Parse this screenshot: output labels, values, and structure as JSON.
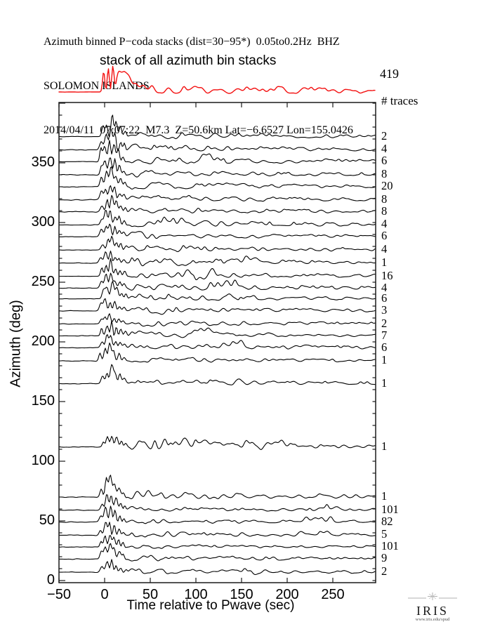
{
  "header": {
    "line1": "Azimuth binned P−coda stacks (dist=30−95*)  0.05to0.2Hz  BHZ",
    "line2": "SOLOMON ISLANDS",
    "line3": "2014/04/11  07:07:22  M7.3  Z=50.6km Lat=−6.6527 Lon=155.0426"
  },
  "stack": {
    "label": "stack of all azimuth bin stacks",
    "total": "419"
  },
  "plot": {
    "traces_header": "# traces",
    "xlabel": "Time relative to Pwave (sec)",
    "ylabel": "Azimuth (deg)"
  },
  "logo": {
    "text": "IRIS",
    "url": "www.iris.edu/spud"
  },
  "colors": {
    "stack_trace": "#f31111",
    "trace": "#000000",
    "frame": "#1a1a1a"
  },
  "chart_data": {
    "type": "line",
    "title": "Azimuth binned P-coda stacks (dist=30-95*) 0.05to0.2Hz BHZ",
    "subtitle": "SOLOMON ISLANDS 2014/04/11 07:07:22 M7.3 Z=50.6km Lat=-6.6527 Lon=155.0426",
    "xlabel": "Time relative to Pwave (sec)",
    "ylabel": "Azimuth (deg)",
    "xlim": [
      -50,
      297
    ],
    "ylim": [
      0,
      400
    ],
    "xticks": [
      -50,
      0,
      50,
      100,
      150,
      200,
      250
    ],
    "yticks": [
      0,
      50,
      100,
      150,
      200,
      250,
      300,
      350
    ],
    "y_minor_step": 10,
    "grid": false,
    "stack_trace": {
      "label": "stack of all azimuth bin stacks",
      "n_traces": 419,
      "amp": 36,
      "coda": 5.5
    },
    "traces": [
      {
        "azimuth": 372,
        "count": 2,
        "amp": 25,
        "coda": 4.5
      },
      {
        "azimuth": 361,
        "count": 4,
        "amp": 27,
        "coda": 4.5
      },
      {
        "azimuth": 351,
        "count": 6,
        "amp": 30,
        "coda": 5,
        "packets": [
          {
            "t": 120,
            "a": 7,
            "w": 25
          }
        ]
      },
      {
        "azimuth": 340,
        "count": 8,
        "amp": 24,
        "coda": 4.5
      },
      {
        "azimuth": 330,
        "count": 20,
        "amp": 23,
        "coda": 4
      },
      {
        "azimuth": 319,
        "count": 8,
        "amp": 22,
        "coda": 4
      },
      {
        "azimuth": 309,
        "count": 8,
        "amp": 21,
        "coda": 4
      },
      {
        "azimuth": 298,
        "count": 4,
        "amp": 20,
        "coda": 4.5,
        "packets": [
          {
            "t": 75,
            "a": 6,
            "w": 20
          }
        ]
      },
      {
        "azimuth": 288,
        "count": 6,
        "amp": 21,
        "coda": 4
      },
      {
        "azimuth": 277,
        "count": 4,
        "amp": 18,
        "coda": 4.5
      },
      {
        "azimuth": 266,
        "count": 1,
        "amp": 15,
        "coda": 5,
        "packets": [
          {
            "t": 150,
            "a": 6,
            "w": 30
          }
        ]
      },
      {
        "azimuth": 255,
        "count": 16,
        "amp": 20,
        "coda": 4,
        "packets": [
          {
            "t": 105,
            "a": 11,
            "w": 30
          }
        ]
      },
      {
        "azimuth": 245,
        "count": 4,
        "amp": 18,
        "coda": 4,
        "packets": [
          {
            "t": 130,
            "a": 9,
            "w": 28
          }
        ]
      },
      {
        "azimuth": 236,
        "count": 6,
        "amp": 20,
        "coda": 4,
        "packets": [
          {
            "t": 150,
            "a": 7,
            "w": 25
          }
        ]
      },
      {
        "azimuth": 226,
        "count": 3,
        "amp": 17,
        "coda": 4,
        "packets": [
          {
            "t": 70,
            "a": 6,
            "w": 15
          }
        ]
      },
      {
        "azimuth": 215,
        "count": 2,
        "amp": 15,
        "coda": 4
      },
      {
        "azimuth": 205,
        "count": 7,
        "amp": 18,
        "coda": 4,
        "packets": [
          {
            "t": 110,
            "a": 6,
            "w": 25
          }
        ]
      },
      {
        "azimuth": 195,
        "count": 6,
        "amp": 16,
        "coda": 4,
        "packets": [
          {
            "t": 140,
            "a": 7,
            "w": 20
          }
        ]
      },
      {
        "azimuth": 184,
        "count": 1,
        "amp": 20,
        "coda": 3.5
      },
      {
        "azimuth": 165,
        "count": 1,
        "amp": 23,
        "coda": 4,
        "packets": [
          {
            "t": 145,
            "a": 8,
            "w": 8
          }
        ]
      },
      {
        "azimuth": 112,
        "count": 1,
        "amp": 16,
        "coda": 5.5,
        "packets": [
          {
            "t": 65,
            "a": 9,
            "w": 20
          },
          {
            "t": 105,
            "a": 10,
            "w": 30
          },
          {
            "t": 175,
            "a": 6,
            "w": 40
          }
        ]
      },
      {
        "azimuth": 70,
        "count": 1,
        "amp": 25,
        "coda": 5,
        "packets": [
          {
            "t": 55,
            "a": 8,
            "w": 15
          }
        ]
      },
      {
        "azimuth": 59,
        "count": 101,
        "amp": 22,
        "coda": 3,
        "packets": [
          {
            "t": 240,
            "a": 5,
            "w": 30
          }
        ]
      },
      {
        "azimuth": 49,
        "count": 82,
        "amp": 20,
        "coda": 3,
        "packets": [
          {
            "t": 235,
            "a": 6,
            "w": 25
          }
        ]
      },
      {
        "azimuth": 38,
        "count": 5,
        "amp": 18,
        "coda": 3.5,
        "packets": [
          {
            "t": 230,
            "a": 5,
            "w": 30
          }
        ]
      },
      {
        "azimuth": 28,
        "count": 101,
        "amp": 20,
        "coda": 3
      },
      {
        "azimuth": 18,
        "count": 9,
        "amp": 18,
        "coda": 3.5
      },
      {
        "azimuth": 7,
        "count": 2,
        "amp": 14,
        "coda": 3.5,
        "packets": [
          {
            "t": 160,
            "a": 7,
            "w": 10
          }
        ]
      }
    ]
  }
}
